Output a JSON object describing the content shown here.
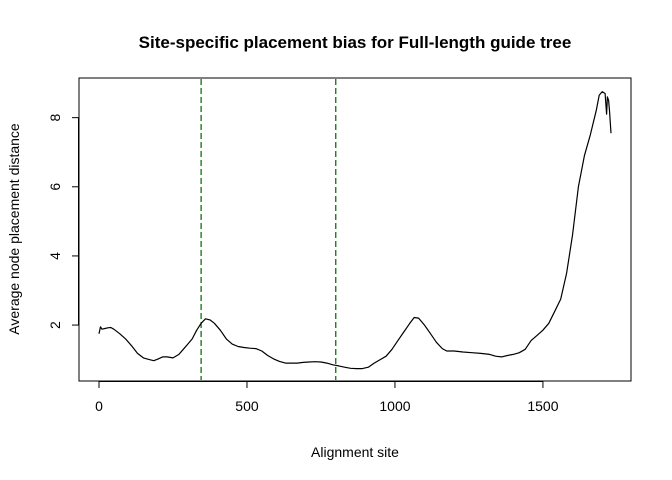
{
  "chart_data": {
    "type": "line",
    "title": "Site-specific placement bias for Full-length guide tree",
    "xlabel": "Alignment site",
    "ylabel": "Average node placement distance",
    "xlim": [
      0,
      1730
    ],
    "ylim": [
      0.7,
      8.8
    ],
    "xticks": [
      0,
      500,
      1000,
      1500
    ],
    "yticks": [
      2,
      4,
      6,
      8
    ],
    "xtick_labels": [
      "0",
      "500",
      "1000",
      "1500"
    ],
    "ytick_labels": [
      "2",
      "4",
      "6",
      "8"
    ],
    "grid": false,
    "legend": "none",
    "line_color": "#000000",
    "vlines": [
      {
        "x": 345,
        "color": "#006400",
        "style": "dashed"
      },
      {
        "x": 800,
        "color": "#006400",
        "style": "dashed"
      }
    ],
    "series": [
      {
        "x": [
          0,
          5,
          10,
          20,
          30,
          40,
          50,
          70,
          90,
          110,
          130,
          150,
          170,
          185,
          200,
          215,
          230,
          250,
          270,
          285,
          300,
          315,
          330,
          345,
          360,
          375,
          390,
          410,
          430,
          450,
          470,
          490,
          510,
          530,
          550,
          570,
          590,
          610,
          630,
          650,
          670,
          690,
          710,
          730,
          750,
          770,
          790,
          810,
          830,
          850,
          870,
          890,
          910,
          930,
          950,
          970,
          990,
          1010,
          1030,
          1050,
          1065,
          1080,
          1100,
          1120,
          1140,
          1160,
          1175,
          1200,
          1230,
          1260,
          1290,
          1320,
          1340,
          1360,
          1380,
          1400,
          1420,
          1440,
          1460,
          1480,
          1500,
          1520,
          1540,
          1560,
          1580,
          1600,
          1620,
          1640,
          1660,
          1680,
          1690,
          1700,
          1710,
          1715,
          1718,
          1722,
          1725,
          1730
        ],
        "y": [
          1.75,
          1.95,
          1.88,
          1.9,
          1.92,
          1.93,
          1.88,
          1.75,
          1.6,
          1.4,
          1.18,
          1.05,
          1.0,
          0.97,
          1.02,
          1.08,
          1.08,
          1.05,
          1.15,
          1.3,
          1.45,
          1.6,
          1.85,
          2.05,
          2.18,
          2.15,
          2.05,
          1.85,
          1.6,
          1.45,
          1.38,
          1.35,
          1.33,
          1.32,
          1.25,
          1.12,
          1.02,
          0.95,
          0.9,
          0.9,
          0.9,
          0.92,
          0.93,
          0.94,
          0.93,
          0.9,
          0.85,
          0.82,
          0.78,
          0.75,
          0.74,
          0.74,
          0.78,
          0.9,
          1.0,
          1.1,
          1.3,
          1.55,
          1.8,
          2.05,
          2.22,
          2.2,
          2.0,
          1.75,
          1.5,
          1.32,
          1.25,
          1.25,
          1.22,
          1.2,
          1.18,
          1.15,
          1.1,
          1.08,
          1.12,
          1.15,
          1.2,
          1.3,
          1.55,
          1.7,
          1.85,
          2.05,
          2.4,
          2.75,
          3.5,
          4.6,
          6.0,
          6.9,
          7.5,
          8.2,
          8.65,
          8.75,
          8.7,
          8.1,
          8.6,
          8.5,
          8.2,
          7.55
        ]
      }
    ]
  }
}
